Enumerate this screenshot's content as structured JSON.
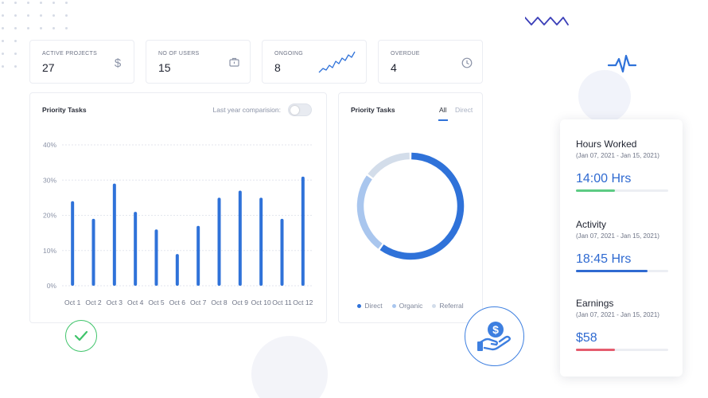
{
  "stats": [
    {
      "label": "ACTIVE PROJECTS",
      "value": "27",
      "icon": "dollar-icon"
    },
    {
      "label": "NO OF USERS",
      "value": "15",
      "icon": "briefcase-icon"
    },
    {
      "label": "ONGOING",
      "value": "8",
      "icon": "trend-line-icon"
    },
    {
      "label": "OVERDUE",
      "value": "4",
      "icon": "clock-icon"
    }
  ],
  "bar_panel": {
    "title": "Priority Tasks",
    "comparison_label": "Last year comparision:"
  },
  "donut_panel": {
    "title": "Priority Tasks",
    "tabs": [
      "All",
      "Direct"
    ]
  },
  "chart_data": [
    {
      "type": "bar",
      "categories": [
        "Oct 1",
        "Oct 2",
        "Oct 3",
        "Oct 4",
        "Oct 5",
        "Oct 6",
        "Oct 7",
        "Oct 8",
        "Oct 9",
        "Oct 10",
        "Oct 11",
        "Oct 12"
      ],
      "values": [
        24,
        19,
        29,
        21,
        16,
        9,
        17,
        25,
        27,
        25,
        19,
        31
      ],
      "yticks": [
        "0%",
        "10%",
        "20%",
        "30%",
        "40%"
      ],
      "ylim": [
        0,
        40
      ],
      "grid": true,
      "color": "#2f72d9"
    },
    {
      "type": "pie",
      "variant": "donut",
      "labels": [
        "Direct",
        "Organic",
        "Referral"
      ],
      "values": [
        60,
        25,
        15
      ],
      "colors": [
        "#2f72d9",
        "#a9c6ee",
        "#d3ddea"
      ],
      "legend": "bottom"
    }
  ],
  "side_card": {
    "sections": [
      {
        "title": "Hours Worked",
        "date": "(Jan 07, 2021 - Jan 15, 2021)",
        "value": "14:00 Hrs",
        "progress": 0.42,
        "color": "#5ccb83"
      },
      {
        "title": "Activity",
        "date": "(Jan 07, 2021 - Jan 15, 2021)",
        "value": "18:45 Hrs",
        "progress": 0.78,
        "color": "#2f6ad1"
      },
      {
        "title": "Earnings",
        "date": "(Jan 07, 2021 - Jan 15, 2021)",
        "value": "$58",
        "progress": 0.42,
        "color": "#e55c6e"
      }
    ]
  }
}
